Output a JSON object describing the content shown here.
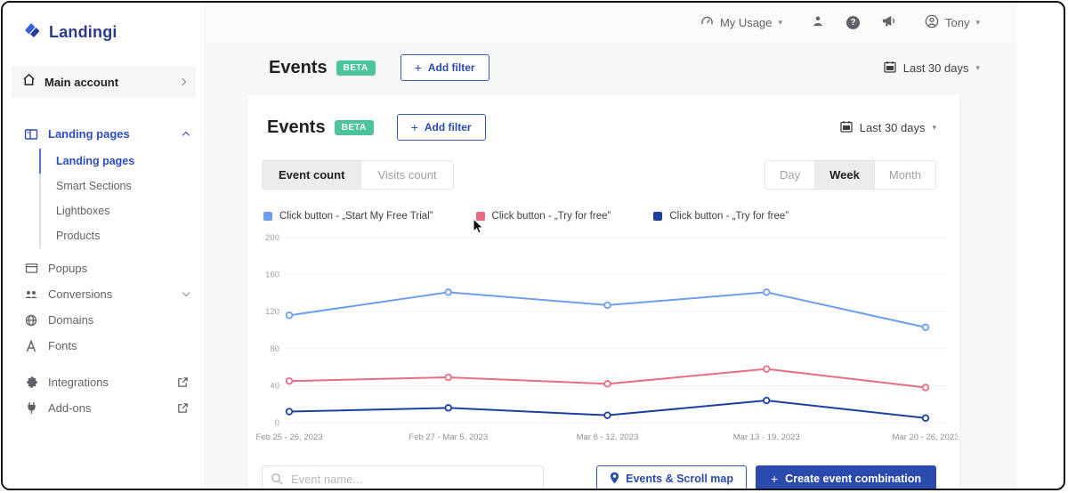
{
  "icons": {
    "plus": "+",
    "caret_down": "▾",
    "question_mark": "?"
  },
  "sidebar": {
    "logo_text": "Landingi",
    "main_account": {
      "label": "Main account"
    },
    "landing_pages_group": {
      "label": "Landing pages"
    },
    "subitems": [
      {
        "label": "Landing pages"
      },
      {
        "label": "Smart Sections"
      },
      {
        "label": "Lightboxes"
      },
      {
        "label": "Products"
      }
    ],
    "items": [
      {
        "label": "Popups"
      },
      {
        "label": "Conversions"
      },
      {
        "label": "Domains"
      },
      {
        "label": "Fonts"
      }
    ],
    "external_items": [
      {
        "label": "Integrations"
      },
      {
        "label": "Add-ons"
      }
    ]
  },
  "topbar": {
    "usage_label": "My Usage",
    "user_name": "Tony"
  },
  "page": {
    "title": "Events",
    "beta_badge": "BETA",
    "add_filter_label": "Add filter",
    "date_range": "Last 30 days"
  },
  "card": {
    "title": "Events",
    "beta_badge": "BETA",
    "add_filter_label": "Add filter",
    "date_range": "Last 30 days",
    "view_tabs": [
      {
        "label": "Event count"
      },
      {
        "label": "Visits count"
      }
    ],
    "granularity_tabs": [
      {
        "label": "Day"
      },
      {
        "label": "Week"
      },
      {
        "label": "Month"
      }
    ],
    "footer": {
      "search_placeholder": "Event name...",
      "events_scroll_map_label": "Events & Scroll map",
      "create_combination_label": "Create event combination"
    }
  },
  "chart_data": {
    "type": "line",
    "title": "Events — event count by week",
    "categories": [
      "Feb 25 - 26, 2023",
      "Feb 27 - Mar 5, 2023",
      "Mar 6 - 12, 2023",
      "Mar 13 - 19, 2023",
      "Mar 20 - 26, 2023"
    ],
    "series": [
      {
        "name": "Click button - „Start My Free Trial”",
        "color": "#6d9eef",
        "values": [
          116,
          141,
          127,
          141,
          103
        ]
      },
      {
        "name": "Click button - „Try for free”",
        "color": "#e66e84",
        "values": [
          45,
          49,
          42,
          58,
          38
        ]
      },
      {
        "name": "Click button - „Try for free”",
        "color": "#1d3f9e",
        "values": [
          12,
          16,
          8,
          24,
          5
        ]
      }
    ],
    "ylim": [
      0,
      200
    ],
    "yticks": [
      0,
      40,
      80,
      120,
      160,
      200
    ],
    "grid": true,
    "legend_position": "top"
  }
}
